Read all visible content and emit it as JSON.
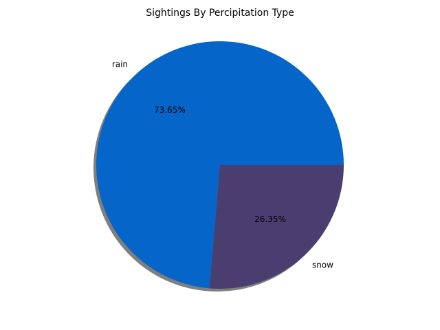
{
  "chart_data": {
    "type": "pie",
    "title": "Sightings By Percipitation Type",
    "categories": [
      "rain",
      "snow"
    ],
    "values": [
      73.65,
      26.35
    ],
    "value_labels": [
      "73.65%",
      "26.35%"
    ],
    "colors": [
      "#0565c9",
      "#4a3d70"
    ],
    "start_angle_deg": 0,
    "direction": "counterclockwise",
    "shadow": true,
    "legend": "none"
  }
}
